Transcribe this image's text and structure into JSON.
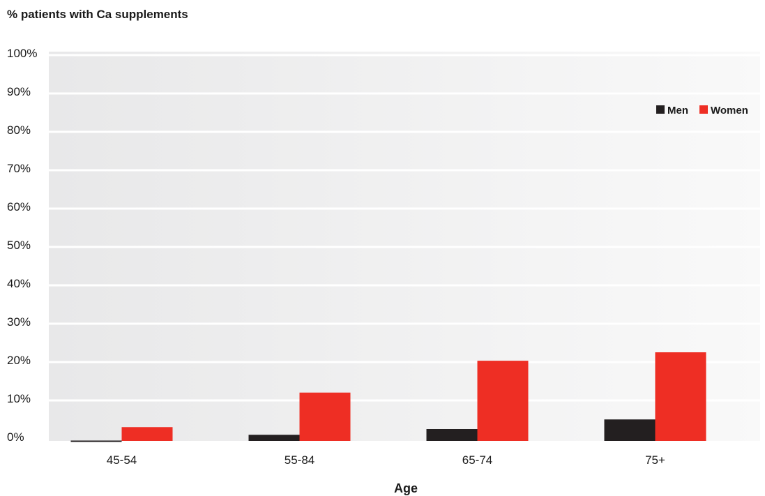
{
  "chart_data": {
    "type": "bar",
    "ylabel": "% patients with Ca supplements",
    "xlabel": "Age",
    "categories": [
      "45-54",
      "55-84",
      "65-74",
      "75+"
    ],
    "series": [
      {
        "name": "Men",
        "color": "#231f20",
        "values": [
          -1,
          0.5,
          2,
          4.5
        ]
      },
      {
        "name": "Women",
        "color": "#ee2e24",
        "values": [
          2.5,
          11.5,
          19.8,
          22
        ]
      }
    ],
    "ylim": [
      0,
      100
    ],
    "yticks": [
      "0%",
      "10%",
      "20%",
      "30%",
      "40%",
      "50%",
      "60%",
      "70%",
      "80%",
      "90%",
      "100%"
    ],
    "grid": true,
    "legend": "top-right"
  }
}
